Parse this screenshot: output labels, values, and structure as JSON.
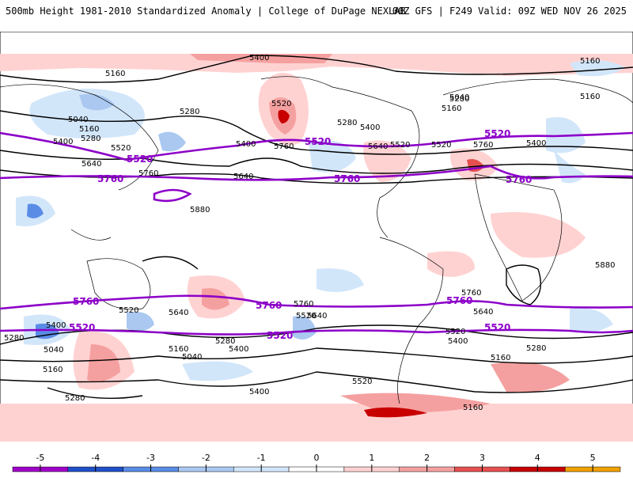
{
  "header": {
    "title": "500mb Height 1981-2010 Standardized Anomaly | College of DuPage NEXLAB",
    "run_info": "00Z GFS | F249 Valid: 09Z WED NOV 26 2025"
  },
  "map": {
    "black_contour_labels": [
      "5400",
      "5160",
      "5160",
      "5040",
      "5160",
      "5280",
      "5400",
      "5520",
      "5640",
      "5760",
      "5280",
      "5520",
      "5400",
      "5280",
      "5400",
      "5520",
      "5640",
      "5760",
      "5880",
      "5040",
      "5280",
      "5160",
      "5400",
      "5520",
      "5640",
      "5760",
      "5160",
      "5040",
      "5280",
      "5400",
      "5520",
      "5640",
      "5760",
      "5280",
      "5160",
      "5040",
      "5160",
      "5280",
      "5400",
      "5520",
      "5640",
      "5760",
      "5880",
      "5400",
      "5520",
      "5640",
      "5160",
      "5280",
      "5400",
      "5520",
      "5160"
    ],
    "purple_contour_labels": [
      "5520",
      "5760",
      "5520",
      "5760",
      "5520",
      "5760",
      "5760",
      "5520",
      "5760",
      "5520",
      "5760",
      "5520"
    ]
  },
  "legend": {
    "ticks": [
      "-5",
      "-4",
      "-3",
      "-2",
      "-1",
      "0",
      "1",
      "2",
      "3",
      "4",
      "5"
    ],
    "colors": [
      "#a000c8",
      "#2050c8",
      "#5a8ce6",
      "#aac8f0",
      "#d2e6fa",
      "#ffffff",
      "#ffd2d2",
      "#f5a0a0",
      "#e65050",
      "#c80000",
      "#f0a000"
    ]
  }
}
